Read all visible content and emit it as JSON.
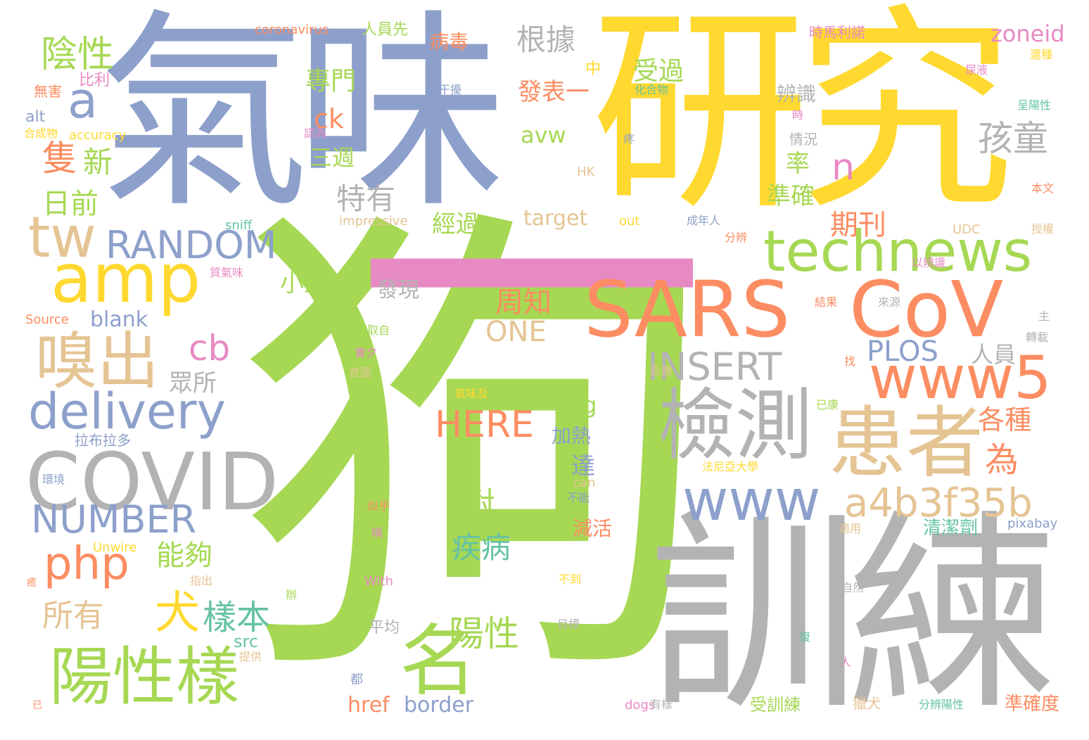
{
  "palette": {
    "green": "#a6d854",
    "yellow": "#ffd92f",
    "blue": "#8da0cb",
    "orange": "#fc8d62",
    "tan": "#e5c494",
    "gray": "#b3b3b3",
    "pink": "#e78ac3",
    "teal": "#66c2a5"
  },
  "words": [
    {
      "text": "狗",
      "color": "green"
    },
    {
      "text": "氣味",
      "color": "blue"
    },
    {
      "text": "研究",
      "color": "yellow"
    },
    {
      "text": "訓練",
      "color": "gray"
    },
    {
      "text": "一",
      "color": "pink"
    },
    {
      "text": "SARS",
      "color": "orange"
    },
    {
      "text": "CoV",
      "color": "orange"
    },
    {
      "text": "technews",
      "color": "green"
    },
    {
      "text": "amp",
      "color": "yellow"
    },
    {
      "text": "COVID",
      "color": "gray"
    },
    {
      "text": "檢測",
      "color": "gray"
    },
    {
      "text": "患者",
      "color": "tan"
    },
    {
      "text": "名",
      "color": "green"
    },
    {
      "text": "www5",
      "color": "orange"
    },
    {
      "text": "陽性樣",
      "color": "green"
    },
    {
      "text": "嗅出",
      "color": "tan"
    },
    {
      "text": "delivery",
      "color": "blue"
    },
    {
      "text": "www",
      "color": "blue"
    },
    {
      "text": "a4b3f35b",
      "color": "tan"
    },
    {
      "text": "tw",
      "color": "tan"
    },
    {
      "text": "a",
      "color": "blue"
    },
    {
      "text": "RANDOM",
      "color": "blue"
    },
    {
      "text": "INSERT",
      "color": "gray"
    },
    {
      "text": "NUMBER",
      "color": "blue"
    },
    {
      "text": "php",
      "color": "orange"
    },
    {
      "text": "犬",
      "color": "yellow"
    },
    {
      "text": "孩童",
      "color": "gray"
    },
    {
      "text": "陰性",
      "color": "green"
    },
    {
      "text": "隻",
      "color": "orange"
    },
    {
      "text": "新",
      "color": "green"
    },
    {
      "text": "日前",
      "color": "green"
    },
    {
      "text": "根據",
      "color": "gray"
    },
    {
      "text": "HERE",
      "color": "orange"
    },
    {
      "text": "樣本",
      "color": "teal"
    },
    {
      "text": "陽性",
      "color": "green"
    },
    {
      "text": "對",
      "color": "green"
    },
    {
      "text": "疾病",
      "color": "teal"
    },
    {
      "text": "所有",
      "color": "tan"
    },
    {
      "text": "能夠",
      "color": "green"
    },
    {
      "text": "期刊",
      "color": "orange"
    },
    {
      "text": "周知",
      "color": "orange"
    },
    {
      "text": "ONE",
      "color": "tan"
    },
    {
      "text": "PLOS",
      "color": "blue"
    },
    {
      "text": "各種",
      "color": "orange"
    },
    {
      "text": "為",
      "color": "orange"
    },
    {
      "text": "cb",
      "color": "pink"
    },
    {
      "text": "n",
      "color": "pink"
    },
    {
      "text": "特有",
      "color": "gray"
    },
    {
      "text": "眾所",
      "color": "gray"
    },
    {
      "text": "準確",
      "color": "green"
    },
    {
      "text": "率",
      "color": "green"
    },
    {
      "text": "受過",
      "color": "green"
    },
    {
      "text": "發表一",
      "color": "orange"
    },
    {
      "text": "專門",
      "color": "green"
    },
    {
      "text": "ck",
      "color": "orange"
    },
    {
      "text": "三週",
      "color": "green"
    },
    {
      "text": "經過",
      "color": "green"
    },
    {
      "text": "小型",
      "color": "green"
    },
    {
      "text": "發現",
      "color": "gray"
    },
    {
      "text": "zoneid",
      "color": "pink"
    },
    {
      "text": "辨識",
      "color": "gray"
    },
    {
      "text": "情況",
      "color": "gray"
    },
    {
      "text": "avw",
      "color": "green"
    },
    {
      "text": "target",
      "color": "tan"
    },
    {
      "text": "img",
      "color": "green"
    },
    {
      "text": "加熱",
      "color": "blue"
    },
    {
      "text": "達",
      "color": "blue"
    },
    {
      "text": "減活",
      "color": "orange"
    },
    {
      "text": "人員",
      "color": "gray"
    },
    {
      "text": "blank",
      "color": "blue"
    },
    {
      "text": "href",
      "color": "orange"
    },
    {
      "text": "border",
      "color": "blue"
    },
    {
      "text": "受訓練",
      "color": "green"
    },
    {
      "text": "準確度",
      "color": "orange"
    },
    {
      "text": "清潔劑",
      "color": "teal"
    },
    {
      "text": "src",
      "color": "teal"
    },
    {
      "text": "平均",
      "color": "gray"
    },
    {
      "text": "病毒",
      "color": "orange"
    },
    {
      "text": "人員先",
      "color": "green"
    },
    {
      "text": "coronavirus",
      "color": "orange"
    },
    {
      "text": "時馬利諾",
      "color": "pink"
    },
    {
      "text": "比利",
      "color": "pink"
    },
    {
      "text": "無害",
      "color": "orange"
    },
    {
      "text": "alt",
      "color": "blue"
    },
    {
      "text": "合成物",
      "color": "yellow"
    },
    {
      "text": "accuracy",
      "color": "yellow"
    },
    {
      "text": "impressive",
      "color": "tan"
    },
    {
      "text": "sniff",
      "color": "teal"
    },
    {
      "text": "out",
      "color": "yellow"
    },
    {
      "text": "Source",
      "color": "orange"
    },
    {
      "text": "Unwire",
      "color": "yellow"
    },
    {
      "text": "With",
      "color": "pink"
    },
    {
      "text": "can",
      "color": "tan"
    },
    {
      "text": "pixabay",
      "color": "blue"
    },
    {
      "text": "dogs",
      "color": "pink"
    },
    {
      "text": "UDC",
      "color": "tan"
    },
    {
      "text": "HK",
      "color": "tan"
    },
    {
      "text": "中",
      "color": "yellow"
    },
    {
      "text": "干擾",
      "color": "blue"
    },
    {
      "text": "化合物",
      "color": "teal"
    },
    {
      "text": "認為",
      "color": "pink"
    },
    {
      "text": "時",
      "color": "pink"
    },
    {
      "text": "疼",
      "color": "blue"
    },
    {
      "text": "成年人",
      "color": "blue"
    },
    {
      "text": "分辨",
      "color": "orange"
    },
    {
      "text": "以辨識",
      "color": "pink"
    },
    {
      "text": "結果",
      "color": "orange"
    },
    {
      "text": "來源",
      "color": "gray"
    },
    {
      "text": "取自",
      "color": "green"
    },
    {
      "text": "實夕",
      "color": "pink"
    },
    {
      "text": "首圖",
      "color": "tan"
    },
    {
      "text": "反應",
      "color": "tan"
    },
    {
      "text": "找",
      "color": "orange"
    },
    {
      "text": "已康",
      "color": "green"
    },
    {
      "text": "拉布拉多",
      "color": "blue"
    },
    {
      "text": "環境",
      "color": "blue"
    },
    {
      "text": "法尼亞大學",
      "color": "yellow"
    },
    {
      "text": "不能",
      "color": "blue"
    },
    {
      "text": "氣味及",
      "color": "yellow"
    },
    {
      "text": "似乎",
      "color": "orange"
    },
    {
      "text": "稱",
      "color": "pink"
    },
    {
      "text": "適用",
      "color": "tan"
    },
    {
      "text": "指出",
      "color": "tan"
    },
    {
      "text": "不到",
      "color": "yellow"
    },
    {
      "text": "辦",
      "color": "green"
    },
    {
      "text": "自然",
      "color": "gray"
    },
    {
      "text": "目標",
      "color": "gray"
    },
    {
      "text": "復",
      "color": "teal"
    },
    {
      "text": "提供",
      "color": "tan"
    },
    {
      "text": "都",
      "color": "blue"
    },
    {
      "text": "人",
      "color": "pink"
    },
    {
      "text": "有樣",
      "color": "gray"
    },
    {
      "text": "獵犬",
      "color": "tan"
    },
    {
      "text": "分辨陽性",
      "color": "teal"
    },
    {
      "text": "已",
      "color": "orange"
    },
    {
      "text": "癒",
      "color": "orange"
    },
    {
      "text": "質氣味",
      "color": "pink"
    },
    {
      "text": "尿液",
      "color": "pink"
    },
    {
      "text": "還種",
      "color": "yellow"
    },
    {
      "text": "呈陽性",
      "color": "teal"
    },
    {
      "text": "本文",
      "color": "orange"
    },
    {
      "text": "授權",
      "color": "tan"
    },
    {
      "text": "主",
      "color": "gray"
    },
    {
      "text": "轉載",
      "color": "gray"
    }
  ]
}
